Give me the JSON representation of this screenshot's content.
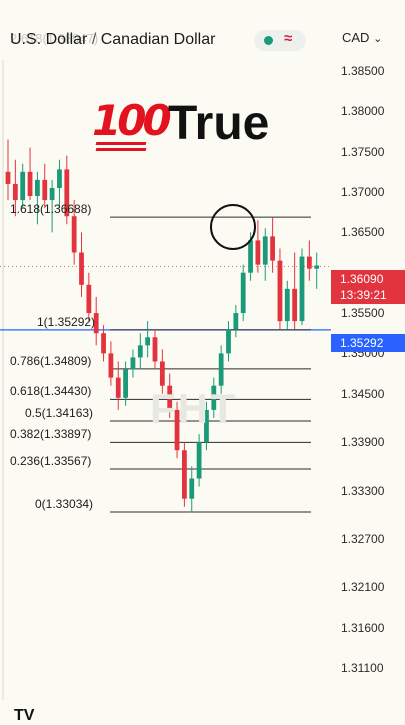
{
  "header": {
    "symbol": "U.S. Dollar",
    "separator": "/",
    "counter": "Canadian Dollar",
    "faded_text": "2.618(1.38947)",
    "status_wave": "≈",
    "currency": "CAD",
    "currency_chevron": "⌄"
  },
  "caption": {
    "emoji": "100",
    "text": "True"
  },
  "watermark": "FHT",
  "logo": "TV",
  "price_axis": [
    "1.38500",
    "1.38000",
    "1.37500",
    "1.37000",
    "1.36500",
    "1.35500",
    "1.35000",
    "1.34500",
    "1.33900",
    "1.33300",
    "1.32700",
    "1.32100",
    "1.31600",
    "1.31100"
  ],
  "price_tags": {
    "current_price": "1.36090",
    "countdown": "13:39:21",
    "fib_level_price": "1.35292"
  },
  "fib_levels": [
    {
      "label": "1.618(1.36688)",
      "value": 1.36688
    },
    {
      "label": "1(1.35292)",
      "value": 1.35292
    },
    {
      "label": "0.786(1.34809)",
      "value": 1.34809
    },
    {
      "label": "0.618(1.34430)",
      "value": 1.3443
    },
    {
      "label": "0.5(1.34163)",
      "value": 1.34163
    },
    {
      "label": "0.382(1.33897)",
      "value": 1.33897
    },
    {
      "label": "0.236(1.33567)",
      "value": 1.33567
    },
    {
      "label": "0(1.33034)",
      "value": 1.33034
    }
  ],
  "colors": {
    "up": "#1b9a7a",
    "down": "#e2343f",
    "fib_line": "#2b2b2b",
    "horizontal_blue": "#2962ff",
    "background": "#fcfbf3"
  },
  "chart_data": {
    "type": "candlestick",
    "symbol": "USD/CAD",
    "ylim": [
      1.3095,
      1.3895
    ],
    "candles": [
      {
        "o": 1.3725,
        "h": 1.3765,
        "l": 1.369,
        "c": 1.371
      },
      {
        "o": 1.371,
        "h": 1.374,
        "l": 1.367,
        "c": 1.369
      },
      {
        "o": 1.369,
        "h": 1.3735,
        "l": 1.368,
        "c": 1.3725
      },
      {
        "o": 1.3725,
        "h": 1.3755,
        "l": 1.369,
        "c": 1.3695
      },
      {
        "o": 1.3695,
        "h": 1.3725,
        "l": 1.366,
        "c": 1.3715
      },
      {
        "o": 1.3715,
        "h": 1.3735,
        "l": 1.368,
        "c": 1.369
      },
      {
        "o": 1.369,
        "h": 1.3715,
        "l": 1.365,
        "c": 1.3705
      },
      {
        "o": 1.3705,
        "h": 1.374,
        "l": 1.368,
        "c": 1.3728
      },
      {
        "o": 1.3728,
        "h": 1.3745,
        "l": 1.366,
        "c": 1.367
      },
      {
        "o": 1.367,
        "h": 1.369,
        "l": 1.361,
        "c": 1.3625
      },
      {
        "o": 1.3625,
        "h": 1.365,
        "l": 1.357,
        "c": 1.3585
      },
      {
        "o": 1.3585,
        "h": 1.36,
        "l": 1.354,
        "c": 1.355
      },
      {
        "o": 1.355,
        "h": 1.357,
        "l": 1.351,
        "c": 1.3525
      },
      {
        "o": 1.3525,
        "h": 1.3535,
        "l": 1.349,
        "c": 1.35
      },
      {
        "o": 1.35,
        "h": 1.3515,
        "l": 1.346,
        "c": 1.347
      },
      {
        "o": 1.347,
        "h": 1.349,
        "l": 1.343,
        "c": 1.3445
      },
      {
        "o": 1.3445,
        "h": 1.349,
        "l": 1.3435,
        "c": 1.348
      },
      {
        "o": 1.348,
        "h": 1.3505,
        "l": 1.347,
        "c": 1.3495
      },
      {
        "o": 1.3495,
        "h": 1.3525,
        "l": 1.348,
        "c": 1.351
      },
      {
        "o": 1.351,
        "h": 1.354,
        "l": 1.3495,
        "c": 1.352
      },
      {
        "o": 1.352,
        "h": 1.353,
        "l": 1.348,
        "c": 1.349
      },
      {
        "o": 1.349,
        "h": 1.3505,
        "l": 1.345,
        "c": 1.346
      },
      {
        "o": 1.346,
        "h": 1.3475,
        "l": 1.342,
        "c": 1.343
      },
      {
        "o": 1.343,
        "h": 1.344,
        "l": 1.337,
        "c": 1.338
      },
      {
        "o": 1.338,
        "h": 1.339,
        "l": 1.331,
        "c": 1.332
      },
      {
        "o": 1.332,
        "h": 1.336,
        "l": 1.3303,
        "c": 1.3345
      },
      {
        "o": 1.3345,
        "h": 1.34,
        "l": 1.3335,
        "c": 1.339
      },
      {
        "o": 1.339,
        "h": 1.344,
        "l": 1.338,
        "c": 1.343
      },
      {
        "o": 1.343,
        "h": 1.347,
        "l": 1.342,
        "c": 1.346
      },
      {
        "o": 1.346,
        "h": 1.351,
        "l": 1.345,
        "c": 1.35
      },
      {
        "o": 1.35,
        "h": 1.354,
        "l": 1.349,
        "c": 1.353
      },
      {
        "o": 1.353,
        "h": 1.356,
        "l": 1.352,
        "c": 1.355
      },
      {
        "o": 1.355,
        "h": 1.361,
        "l": 1.354,
        "c": 1.36
      },
      {
        "o": 1.36,
        "h": 1.365,
        "l": 1.359,
        "c": 1.364
      },
      {
        "o": 1.364,
        "h": 1.3665,
        "l": 1.36,
        "c": 1.361
      },
      {
        "o": 1.361,
        "h": 1.3655,
        "l": 1.359,
        "c": 1.3645
      },
      {
        "o": 1.3645,
        "h": 1.3668,
        "l": 1.36,
        "c": 1.3615
      },
      {
        "o": 1.3615,
        "h": 1.363,
        "l": 1.353,
        "c": 1.354
      },
      {
        "o": 1.354,
        "h": 1.359,
        "l": 1.353,
        "c": 1.358
      },
      {
        "o": 1.358,
        "h": 1.3625,
        "l": 1.353,
        "c": 1.354
      },
      {
        "o": 1.354,
        "h": 1.363,
        "l": 1.3535,
        "c": 1.362
      },
      {
        "o": 1.362,
        "h": 1.364,
        "l": 1.359,
        "c": 1.3605
      },
      {
        "o": 1.3605,
        "h": 1.3625,
        "l": 1.358,
        "c": 1.3609
      }
    ]
  }
}
